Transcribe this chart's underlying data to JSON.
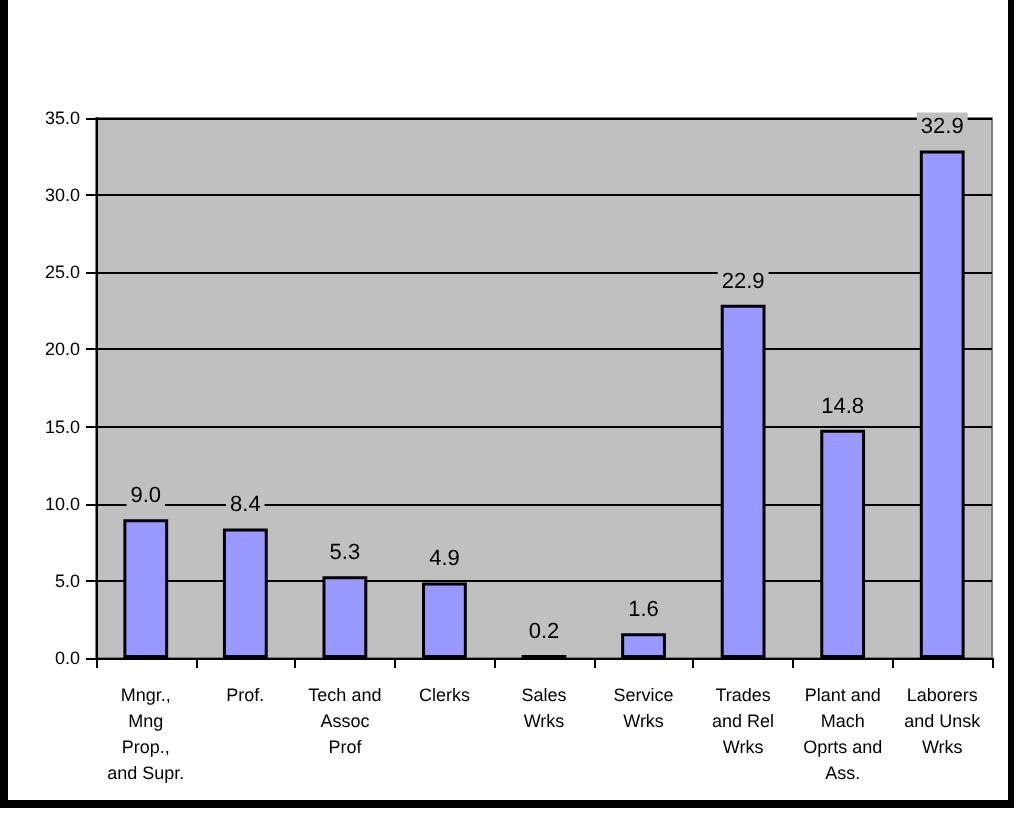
{
  "chart_data": {
    "type": "bar",
    "categories": [
      "Mngr.,\nMng\nProp.,\nand Supr.",
      "Prof.",
      "Tech and\nAssoc\nProf",
      "Clerks",
      "Sales\nWrks",
      "Service\nWrks",
      "Trades\nand Rel\nWrks",
      "Plant and\nMach\nOprts and\nAss.",
      "Laborers\nand Unsk\nWrks"
    ],
    "values": [
      9.0,
      8.4,
      5.3,
      4.9,
      0.2,
      1.6,
      22.9,
      14.8,
      32.9
    ],
    "color": "#9999ff",
    "value_labels": [
      "9.0",
      "8.4",
      "5.3",
      "4.9",
      "0.2",
      "1.6",
      "22.9",
      "14.8",
      "32.9"
    ],
    "ylim": [
      0,
      35
    ],
    "yticks": [
      {
        "value": 0,
        "label": "0.0"
      },
      {
        "value": 5,
        "label": "5.0"
      },
      {
        "value": 10,
        "label": "10.0"
      },
      {
        "value": 15,
        "label": "15.0"
      },
      {
        "value": 20,
        "label": "20.0"
      },
      {
        "value": 25,
        "label": "25.0"
      },
      {
        "value": 30,
        "label": "30.0"
      },
      {
        "value": 35,
        "label": "35.0"
      }
    ],
    "grid": "y"
  }
}
